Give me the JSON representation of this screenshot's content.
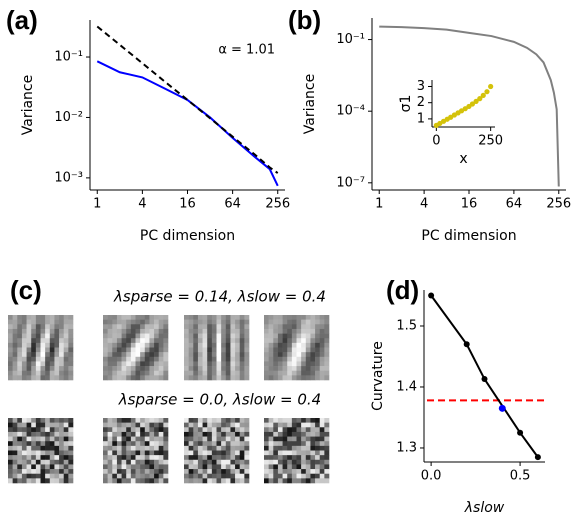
{
  "chart_data": [
    {
      "label": "(a)",
      "type": "line",
      "xlabel": "PC dimension",
      "ylabel": "Variance",
      "annotation": "α = 1.01",
      "xscale": "log",
      "yscale": "log",
      "xlim": [
        0.8,
        320
      ],
      "ylim": [
        0.00063,
        0.41
      ],
      "xticks": [
        1,
        4,
        16,
        64,
        256
      ],
      "yticks": [
        {
          "value": 0.001,
          "label": "10⁻³"
        },
        {
          "value": 0.01,
          "label": "10⁻²"
        },
        {
          "value": 0.1,
          "label": "10⁻¹"
        }
      ],
      "x": [
        1,
        2,
        4,
        8,
        16,
        32,
        64,
        128,
        200,
        256
      ],
      "series": [
        {
          "color": "#0000ff",
          "style": "solid",
          "values": [
            0.085,
            0.056,
            0.046,
            0.03,
            0.0195,
            0.01,
            0.0046,
            0.0022,
            0.0014,
            0.00074
          ]
        },
        {
          "color": "#000000",
          "style": "dashed",
          "values": [
            0.32,
            0.159,
            0.079,
            0.039,
            0.0195,
            0.0097,
            0.0048,
            0.0024,
            0.00149,
            0.0012
          ]
        }
      ]
    },
    {
      "label": "(b)",
      "type": "line",
      "ylabel": "Variance",
      "xlabel": "PC dimension",
      "xscale": "log",
      "yscale": "log",
      "xlim": [
        0.8,
        320
      ],
      "ylim": [
        5e-08,
        0.8
      ],
      "xticks": [
        1,
        4,
        16,
        64,
        256
      ],
      "yticks": [
        {
          "value": 1e-07,
          "label": "10⁻⁷"
        },
        {
          "value": 0.0001,
          "label": "10⁻⁴"
        },
        {
          "value": 0.1,
          "label": "10⁻¹"
        }
      ],
      "x": [
        1,
        2,
        4,
        8,
        16,
        32,
        64,
        96,
        128,
        160,
        200,
        220,
        240,
        256
      ],
      "series": [
        {
          "color": "#808080",
          "style": "solid",
          "values": [
            0.35,
            0.33,
            0.3,
            0.26,
            0.19,
            0.14,
            0.08,
            0.045,
            0.024,
            0.011,
            0.002,
            0.0006,
            0.00012,
            7e-08
          ]
        }
      ],
      "inset": {
        "type": "scatter",
        "xlabel": "x",
        "ylabel": "σ1",
        "color": "#d4c20a",
        "xlim": [
          -20,
          270
        ],
        "ylim": [
          0.5,
          3.4
        ],
        "xticks": [
          0,
          250
        ],
        "yticks": [
          1,
          2,
          3
        ],
        "x": [
          0,
          16,
          33,
          50,
          66,
          83,
          100,
          116,
          133,
          150,
          166,
          183,
          200,
          216,
          233,
          250
        ],
        "values": [
          0.6,
          0.72,
          0.85,
          0.98,
          1.1,
          1.24,
          1.37,
          1.5,
          1.63,
          1.77,
          1.92,
          2.08,
          2.25,
          2.45,
          2.68,
          3.0
        ]
      }
    },
    {
      "label": "(c)",
      "type": "image-grid",
      "rows": [
        {
          "title": "λsparse = 0.14, λslow = 0.4"
        },
        {
          "title": "λsparse = 0.0, λslow = 0.4"
        }
      ]
    },
    {
      "label": "(d)",
      "type": "line",
      "xlabel": "λslow",
      "ylabel": "Curvature",
      "xlim": [
        -0.04,
        0.64
      ],
      "ylim": [
        1.277,
        1.559
      ],
      "xticks": [
        {
          "value": 0,
          "label": "0.0"
        },
        {
          "value": 0.5,
          "label": "0.5"
        }
      ],
      "yticks": [
        1.3,
        1.4,
        1.5
      ],
      "x": [
        0,
        0.2,
        0.3,
        0.5,
        0.6
      ],
      "series": [
        {
          "color": "#000000",
          "style": "solid",
          "markers": true,
          "values": [
            1.55,
            1.47,
            1.413,
            1.325,
            1.285
          ]
        }
      ],
      "highlight": {
        "x": 0.4,
        "y": 1.365,
        "color": "#0000ff"
      },
      "hline": {
        "y": 1.378,
        "color": "#ff0000",
        "style": "dashed"
      }
    }
  ]
}
